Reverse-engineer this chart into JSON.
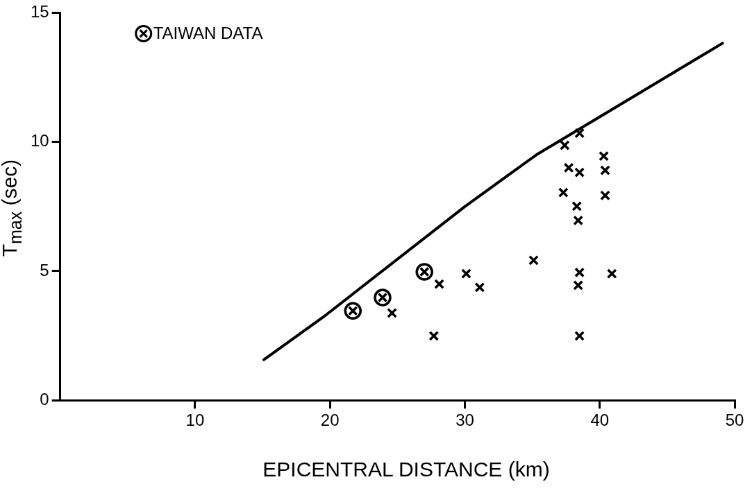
{
  "chart_data": {
    "type": "scatter",
    "xlabel": "EPICENTRAL DISTANCE (km)",
    "ylabel": "T$_{max}$ (sec)",
    "xlim": [
      0,
      50
    ],
    "xticks": [
      10,
      20,
      30,
      40,
      50
    ],
    "ylim": [
      0,
      15
    ],
    "yticks": [
      0,
      5,
      10,
      15
    ],
    "grid": false,
    "legend": "top left",
    "marker": "cross",
    "series": [
      {
        "name": "TAIWAN DATA",
        "type": "scatter",
        "marker": "circle",
        "color": "#000000",
        "x": [
          21.7,
          23.9,
          27.0
        ],
        "values": [
          3.46,
          3.98,
          4.97
        ]
      },
      {
        "type": "scatter",
        "color": "#000000",
        "x": [
          24.6,
          28.1,
          30.1,
          31.1,
          27.7,
          35.1,
          38.5,
          37.4,
          40.3,
          37.7,
          38.5,
          40.4,
          37.3,
          40.4,
          38.3,
          38.4,
          38.5,
          38.4,
          40.9,
          38.5
        ],
        "values": [
          3.38,
          4.5,
          4.9,
          4.37,
          2.49,
          5.42,
          10.34,
          9.87,
          9.45,
          9.0,
          8.82,
          8.9,
          8.04,
          7.93,
          7.51,
          6.96,
          4.95,
          4.45,
          4.9,
          2.49
        ]
      },
      {
        "type": "line",
        "marker": "none",
        "line_style": "solid",
        "color": "#000000",
        "x": [
          15.1,
          19.5,
          30.0,
          35.3,
          49.1
        ],
        "values": [
          1.57,
          3.22,
          7.5,
          9.5,
          13.82
        ]
      }
    ]
  }
}
